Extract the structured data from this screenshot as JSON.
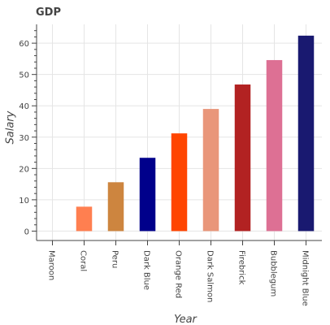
{
  "chart_data": {
    "type": "bar",
    "title": "GDP",
    "xlabel": "Year",
    "ylabel": "Salary",
    "categories": [
      "Maroon",
      "Coral",
      "Peru",
      "Dark Blue",
      "Orange Red",
      "Dark Salmon",
      "Firebrick",
      "Bubblegum",
      "Midnight Blue"
    ],
    "values": [
      0,
      7.8,
      15.6,
      23.4,
      31.2,
      39.0,
      46.8,
      54.6,
      62.4
    ],
    "colors": [
      "#800000",
      "#ff7f50",
      "#cd853f",
      "#00008b",
      "#ff4500",
      "#e9967a",
      "#b22222",
      "#dd7094",
      "#191970"
    ],
    "ylim": [
      -3,
      66
    ],
    "yticks": [
      0,
      10,
      20,
      30,
      40,
      50,
      60
    ],
    "grid": true,
    "legend": "none"
  }
}
